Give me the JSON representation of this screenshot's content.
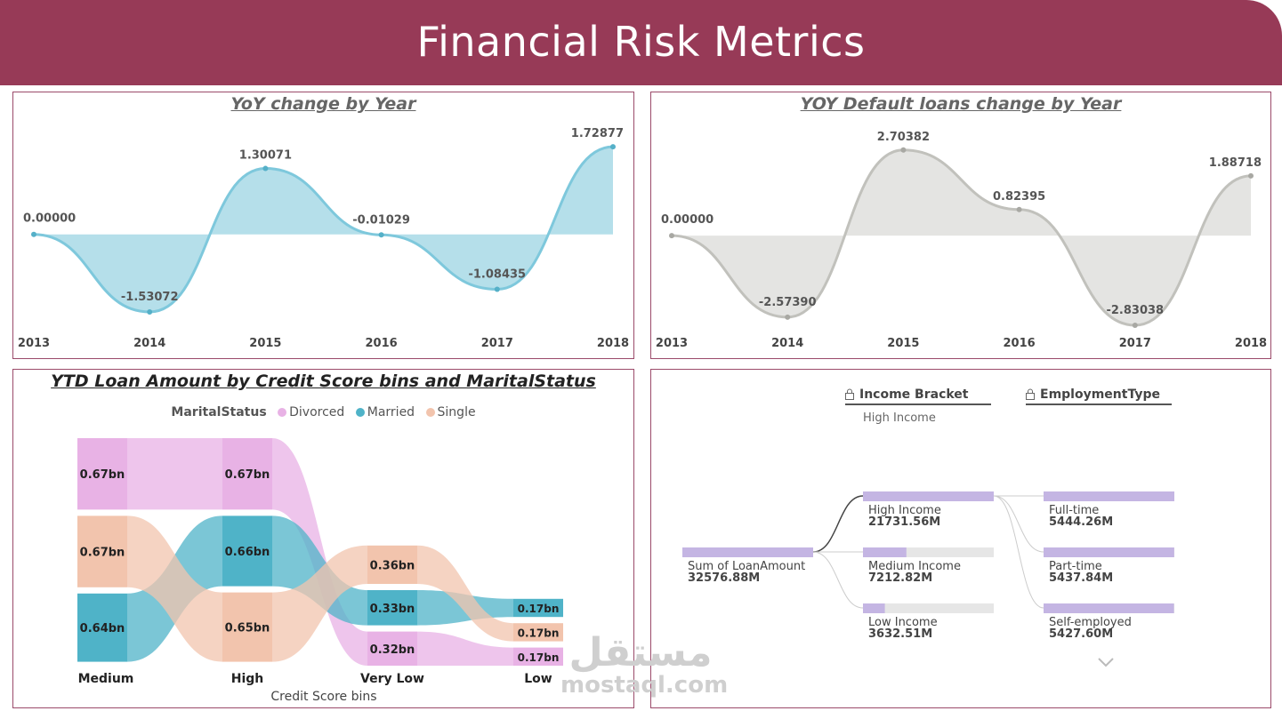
{
  "header": {
    "title": "Financial Risk Metrics"
  },
  "colors": {
    "header_bg": "#973a57",
    "panel_border": "#9b4a6a",
    "yoy_line": "#7ec8dc",
    "yoy_fill": "#b5dfea",
    "default_line": "#c1c1bc",
    "default_fill": "#e4e4e2",
    "divorced": "#e8b2e5",
    "married": "#4fb3c8",
    "single": "#f2c4ad",
    "decomp_bar": "#c4b5e3",
    "decomp_track": "#e6e6e6"
  },
  "chart_data": [
    {
      "type": "area",
      "title": "YoY change by Year",
      "x": [
        "2013",
        "2014",
        "2015",
        "2016",
        "2017",
        "2018"
      ],
      "values": [
        0.0,
        -1.53072,
        1.30071,
        -0.01029,
        -1.08435,
        1.72877
      ],
      "labels": [
        "0.00000",
        "-1.53072",
        "1.30071",
        "-0.01029",
        "-1.08435",
        "1.72877"
      ],
      "ylim": [
        -1.9,
        2.1
      ]
    },
    {
      "type": "area",
      "title": "YOY Default loans change by Year",
      "x": [
        "2013",
        "2014",
        "2015",
        "2016",
        "2017",
        "2018"
      ],
      "values": [
        0.0,
        -2.5739,
        2.70382,
        0.82395,
        -2.83038,
        1.88718
      ],
      "labels": [
        "0.00000",
        "-2.57390",
        "2.70382",
        "0.82395",
        "-2.83038",
        "1.88718"
      ],
      "ylim": [
        -3.0,
        3.4
      ]
    },
    {
      "type": "ribbon",
      "title": "YTD Loan Amount by Credit Score bins and MaritalStatus",
      "xlabel": "Credit Score bins",
      "legend_title": "MaritalStatus",
      "categories": [
        "Medium",
        "High",
        "Very Low",
        "Low"
      ],
      "series": [
        {
          "name": "Divorced",
          "values": [
            0.67,
            0.67,
            0.32,
            0.17
          ],
          "labels": [
            "0.67bn",
            "0.67bn",
            "0.32bn",
            "0.17bn"
          ]
        },
        {
          "name": "Married",
          "values": [
            0.64,
            0.66,
            0.33,
            0.17
          ],
          "labels": [
            "0.64bn",
            "0.66bn",
            "0.33bn",
            "0.17bn"
          ]
        },
        {
          "name": "Single",
          "values": [
            0.67,
            0.65,
            0.36,
            0.17
          ],
          "labels": [
            "0.67bn",
            "0.65bn",
            "0.36bn",
            "0.17bn"
          ]
        }
      ]
    },
    {
      "type": "decomposition-tree",
      "levels": [
        {
          "header": "Income Bracket",
          "selected": "High Income"
        },
        {
          "header": "EmploymentType",
          "selected": ""
        }
      ],
      "root": {
        "label": "Sum of LoanAmount",
        "value": "32576.88M",
        "amount": 32576.88
      },
      "income": [
        {
          "label": "High Income",
          "value": "21731.56M",
          "amount": 21731.56
        },
        {
          "label": "Medium Income",
          "value": "7212.82M",
          "amount": 7212.82
        },
        {
          "label": "Low Income",
          "value": "3632.51M",
          "amount": 3632.51
        }
      ],
      "employment": [
        {
          "label": "Full-time",
          "value": "5444.26M",
          "amount": 5444.26
        },
        {
          "label": "Part-time",
          "value": "5437.84M",
          "amount": 5437.84
        },
        {
          "label": "Self-employed",
          "value": "5427.60M",
          "amount": 5427.6
        }
      ]
    }
  ],
  "watermark": {
    "arabic": "مستقل",
    "latin": "mostaql.com"
  }
}
